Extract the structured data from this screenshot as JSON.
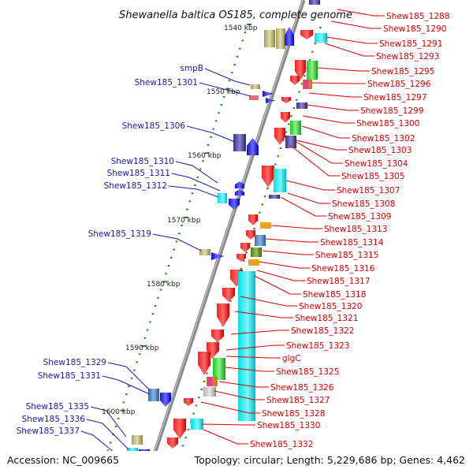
{
  "title": "Shewanella baltica OS185, complete genome",
  "accession": "Accession: NC_009665",
  "topology": "Topology: circular; Length: 5,229,686 bp; Genes: 4,462",
  "kbp_labels": [
    "1540 kbp",
    "1550 kbp",
    "1560 kbp",
    "1570 kbp",
    "1580 kbp",
    "1590 kbp",
    "1600 kbp"
  ],
  "left_labels": [
    "smpB",
    "Shew185_1301",
    "Shew185_1306",
    "Shew185_1310",
    "Shew185_1311",
    "Shew185_1312",
    "Shew185_1319",
    "Shew185_1329",
    "Shew185_1331",
    "Shew185_1335",
    "Shew185_1336",
    "Shew185_1337"
  ],
  "right_labels": [
    "Shew185_1288",
    "Shew185_1290",
    "Shew185_1291",
    "Shew185_1293",
    "Shew185_1295",
    "Shew185_1296",
    "Shew185_1297",
    "Shew185_1299",
    "Shew185_1300",
    "Shew185_1302",
    "Shew185_1303",
    "Shew185_1304",
    "Shew185_1305",
    "Shew185_1307",
    "Shew185_1308",
    "Shew185_1309",
    "Shew185_1313",
    "Shew185_1314",
    "Shew185_1315",
    "Shew185_1316",
    "Shew185_1317",
    "Shew185_1318",
    "Shew185_1320",
    "Shew185_1321",
    "Shew185_1322",
    "Shew185_1323",
    "glgC",
    "Shew185_1325",
    "Shew185_1326",
    "Shew185_1327",
    "Shew185_1328",
    "Shew185_1330",
    "Shew185_1332"
  ],
  "colors": {
    "left_label": "#1a1aa8",
    "right_label": "#d60000",
    "backbone": "#8a8a8a",
    "tick": "#1f8a1f"
  }
}
